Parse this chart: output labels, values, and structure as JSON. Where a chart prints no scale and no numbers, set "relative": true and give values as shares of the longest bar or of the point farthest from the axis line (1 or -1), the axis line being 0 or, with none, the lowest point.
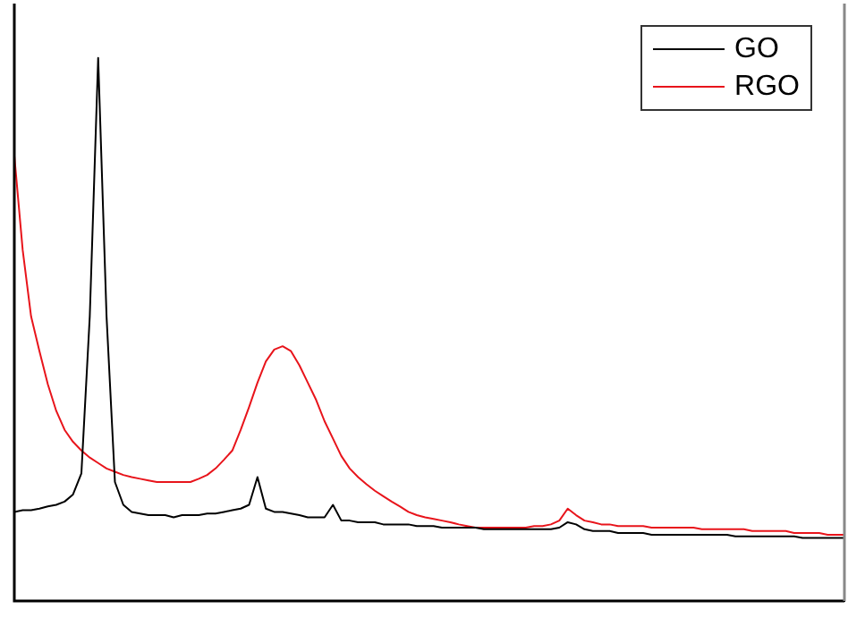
{
  "chart_data": {
    "type": "line",
    "relative": true,
    "grid": false,
    "tick_labels": false,
    "legend": "top right",
    "categories": [
      null,
      null,
      null,
      null,
      null,
      null,
      null,
      null,
      null,
      null,
      null,
      null,
      null,
      null,
      null,
      null,
      null,
      null,
      null,
      null,
      null,
      null,
      null,
      null,
      null,
      null,
      null,
      null,
      null,
      null,
      null,
      null,
      null,
      null,
      null,
      null,
      null,
      null,
      null,
      null,
      null,
      null,
      null,
      null,
      null,
      null,
      null,
      null,
      null,
      null,
      null,
      null,
      null,
      null,
      null,
      null,
      null,
      null,
      null,
      null,
      null,
      null,
      null,
      null,
      null,
      null,
      null,
      null,
      null,
      null,
      null,
      null,
      null,
      null,
      null,
      null,
      null,
      null,
      null,
      null,
      null,
      null,
      null,
      null,
      null,
      null,
      null,
      null,
      null,
      null,
      null,
      null,
      null,
      null,
      null,
      null,
      null,
      null,
      null,
      null
    ],
    "series": [
      {
        "name": "GO",
        "color": "#000000",
        "values": [
          0.164,
          0.167,
          0.167,
          0.17,
          0.174,
          0.177,
          0.183,
          0.196,
          0.235,
          0.524,
          1.0,
          0.524,
          0.219,
          0.177,
          0.164,
          0.161,
          0.158,
          0.158,
          0.158,
          0.154,
          0.158,
          0.158,
          0.158,
          0.161,
          0.161,
          0.164,
          0.167,
          0.17,
          0.177,
          0.228,
          0.17,
          0.164,
          0.164,
          0.161,
          0.158,
          0.154,
          0.154,
          0.154,
          0.177,
          0.148,
          0.148,
          0.145,
          0.145,
          0.145,
          0.141,
          0.141,
          0.141,
          0.141,
          0.138,
          0.138,
          0.138,
          0.135,
          0.135,
          0.135,
          0.135,
          0.135,
          0.132,
          0.132,
          0.132,
          0.132,
          0.132,
          0.132,
          0.132,
          0.132,
          0.132,
          0.135,
          0.145,
          0.141,
          0.132,
          0.129,
          0.129,
          0.129,
          0.125,
          0.125,
          0.125,
          0.125,
          0.122,
          0.122,
          0.122,
          0.122,
          0.122,
          0.122,
          0.122,
          0.122,
          0.122,
          0.122,
          0.119,
          0.119,
          0.119,
          0.119,
          0.119,
          0.119,
          0.119,
          0.119,
          0.116,
          0.116,
          0.116,
          0.116,
          0.116,
          0.116
        ]
      },
      {
        "name": "RGO",
        "color": "#e8141b",
        "values": [
          0.82,
          0.646,
          0.524,
          0.46,
          0.399,
          0.35,
          0.315,
          0.293,
          0.277,
          0.264,
          0.254,
          0.244,
          0.238,
          0.232,
          0.228,
          0.225,
          0.222,
          0.219,
          0.219,
          0.219,
          0.219,
          0.219,
          0.225,
          0.232,
          0.244,
          0.26,
          0.277,
          0.315,
          0.357,
          0.402,
          0.441,
          0.463,
          0.469,
          0.46,
          0.434,
          0.402,
          0.37,
          0.331,
          0.299,
          0.267,
          0.244,
          0.228,
          0.215,
          0.203,
          0.193,
          0.183,
          0.174,
          0.164,
          0.158,
          0.154,
          0.151,
          0.148,
          0.145,
          0.141,
          0.138,
          0.135,
          0.135,
          0.135,
          0.135,
          0.135,
          0.135,
          0.135,
          0.138,
          0.138,
          0.141,
          0.148,
          0.17,
          0.158,
          0.148,
          0.145,
          0.141,
          0.141,
          0.138,
          0.138,
          0.138,
          0.138,
          0.135,
          0.135,
          0.135,
          0.135,
          0.135,
          0.135,
          0.132,
          0.132,
          0.132,
          0.132,
          0.132,
          0.132,
          0.129,
          0.129,
          0.129,
          0.129,
          0.129,
          0.125,
          0.125,
          0.125,
          0.125,
          0.122,
          0.122,
          0.122
        ]
      }
    ]
  }
}
